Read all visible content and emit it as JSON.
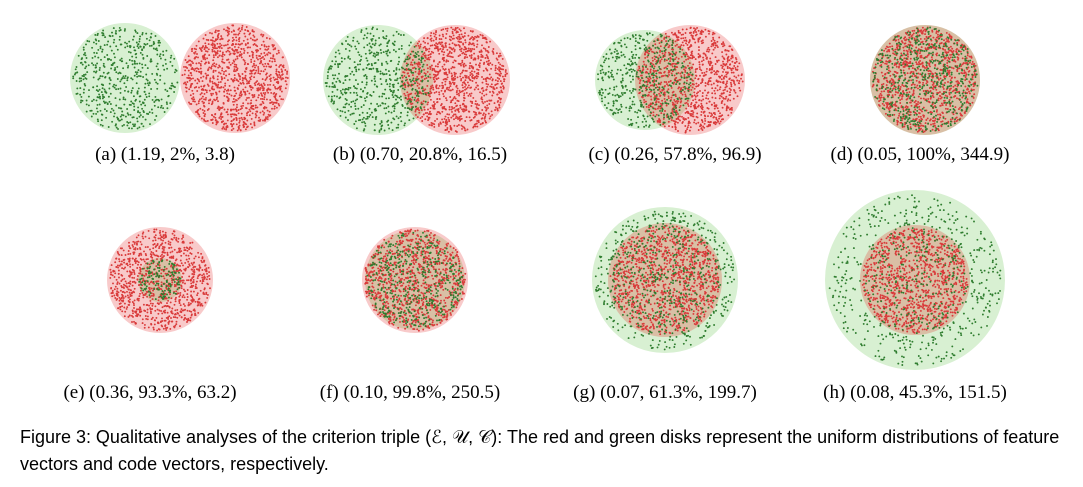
{
  "colors": {
    "feature_disk": "#f8caca",
    "code_disk": "#d8f0d2",
    "overlap": "#d9bfa5",
    "feature_dot": "#d93a3a",
    "code_dot": "#2f7d2f"
  },
  "panels": [
    {
      "id": "a",
      "caption": "(a) (1.19, 2%, 3.8)",
      "metrics": {
        "E": 1.19,
        "U": "2%",
        "C": 3.8
      }
    },
    {
      "id": "b",
      "caption": "(b) (0.70, 20.8%, 16.5)",
      "metrics": {
        "E": 0.7,
        "U": "20.8%",
        "C": 16.5
      }
    },
    {
      "id": "c",
      "caption": "(c) (0.26, 57.8%, 96.9)",
      "metrics": {
        "E": 0.26,
        "U": "57.8%",
        "C": 96.9
      }
    },
    {
      "id": "d",
      "caption": "(d) (0.05, 100%, 344.9)",
      "metrics": {
        "E": 0.05,
        "U": "100%",
        "C": 344.9
      }
    },
    {
      "id": "e",
      "caption": "(e) (0.36, 93.3%, 63.2)",
      "metrics": {
        "E": 0.36,
        "U": "93.3%",
        "C": 63.2
      }
    },
    {
      "id": "f",
      "caption": "(f) (0.10, 99.8%, 250.5)",
      "metrics": {
        "E": 0.1,
        "U": "99.8%",
        "C": 250.5
      }
    },
    {
      "id": "g",
      "caption": "(g) (0.07, 61.3%, 199.7)",
      "metrics": {
        "E": 0.07,
        "U": "61.3%",
        "C": 199.7
      }
    },
    {
      "id": "h",
      "caption": "(h) (0.08, 45.3%, 151.5)",
      "metrics": {
        "E": 0.08,
        "U": "45.3%",
        "C": 151.5
      }
    }
  ],
  "figure_caption": {
    "label": "Figure 3:",
    "text": "Qualitative analyses of the criterion triple (ℰ, 𝒰, 𝒞): The red and green disks represent the uniform distributions of feature vectors and code vectors, respectively."
  }
}
